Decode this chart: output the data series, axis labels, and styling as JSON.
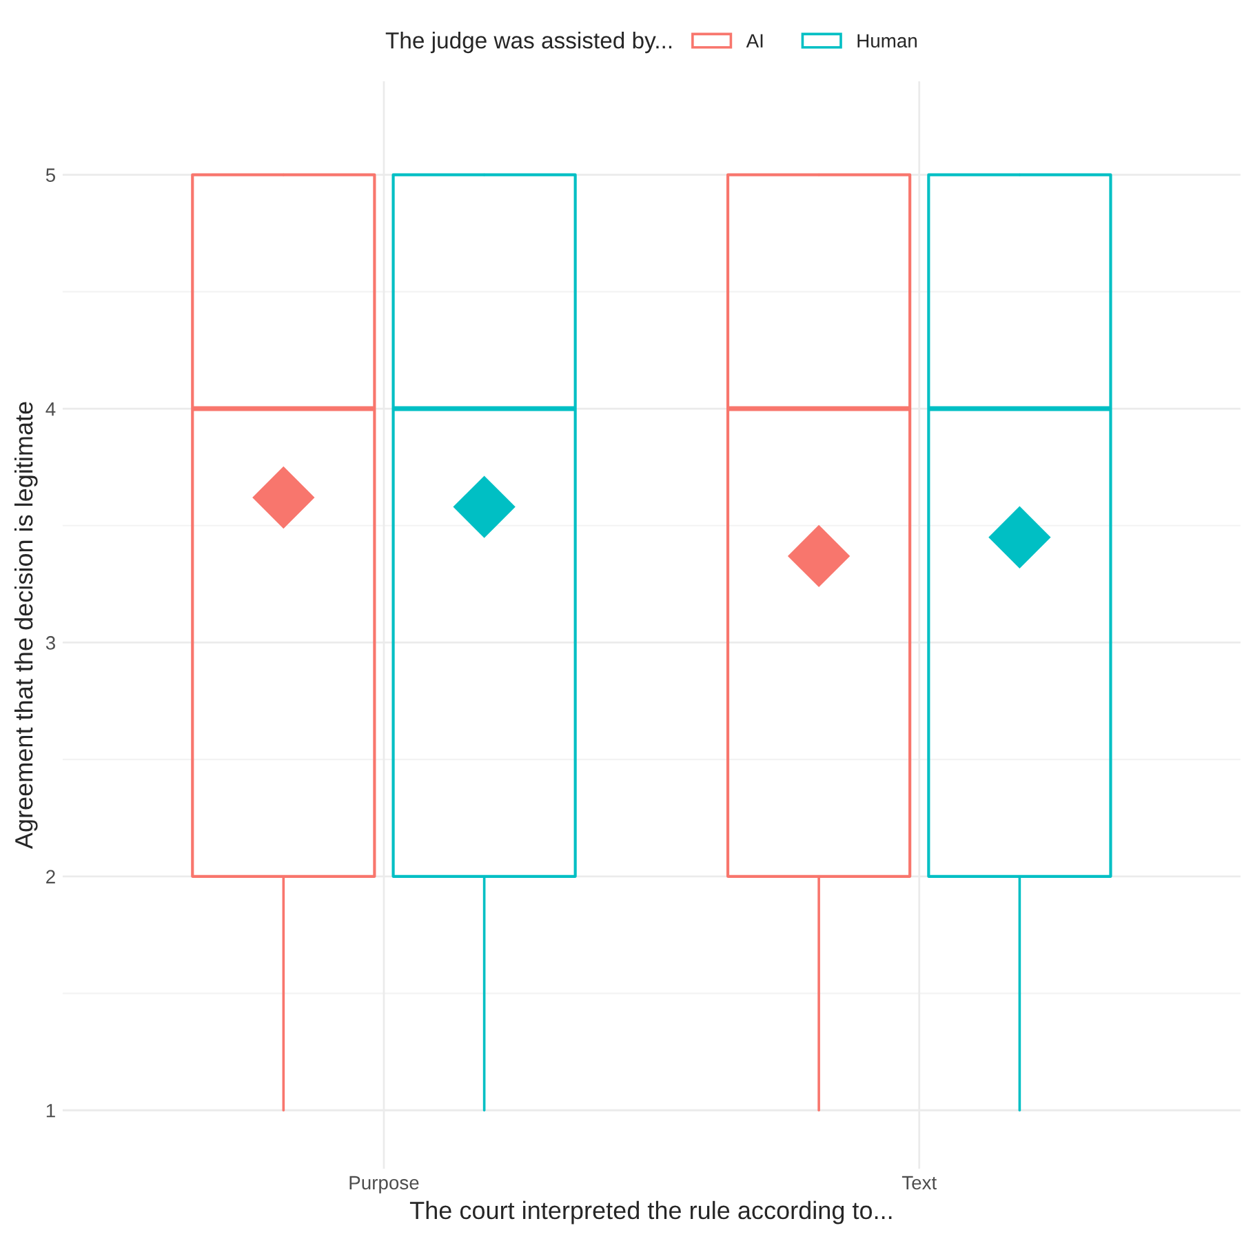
{
  "chart_data": {
    "type": "box",
    "categories": [
      "Purpose",
      "Text"
    ],
    "series": [
      {
        "name": "AI",
        "color": "#f8766d",
        "boxes": [
          {
            "low": 1,
            "q1": 2,
            "median": 4,
            "q3": 5,
            "high": 5,
            "mean": 3.62
          },
          {
            "low": 1,
            "q1": 2,
            "median": 4,
            "q3": 5,
            "high": 5,
            "mean": 3.37
          }
        ]
      },
      {
        "name": "Human",
        "color": "#00bfc4",
        "boxes": [
          {
            "low": 1,
            "q1": 2,
            "median": 4,
            "q3": 5,
            "high": 5,
            "mean": 3.58
          },
          {
            "low": 1,
            "q1": 2,
            "median": 4,
            "q3": 5,
            "high": 5,
            "mean": 3.45
          }
        ]
      }
    ],
    "xlabel": "The court interpreted the rule according to...",
    "ylabel": "Agreement that the decision is legitimate",
    "legend_title": "The judge was assisted by...",
    "ylim": [
      0.75,
      5.4
    ],
    "yticks": [
      1,
      2,
      3,
      4,
      5
    ],
    "grid": true,
    "legend": "top"
  }
}
